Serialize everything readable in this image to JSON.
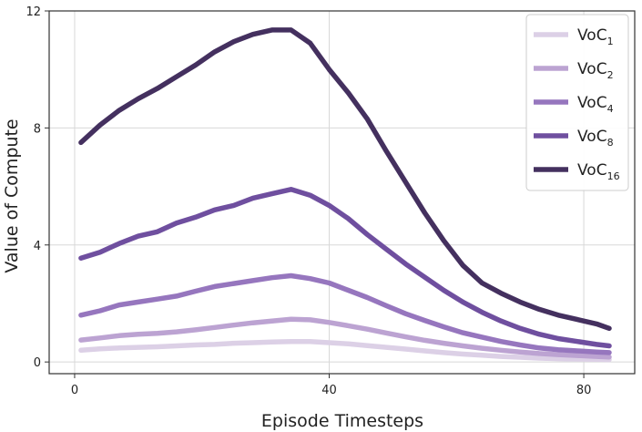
{
  "chart_data": {
    "type": "line",
    "title": "",
    "xlabel": "Episode Timesteps",
    "ylabel": "Value of Compute",
    "xlim": [
      -4,
      88
    ],
    "ylim": [
      -0.4,
      12
    ],
    "xticks": [
      0,
      40,
      80
    ],
    "yticks": [
      0,
      4,
      8,
      12
    ],
    "xtick_labels": [
      "0",
      "40",
      "80"
    ],
    "ytick_labels": [
      "0",
      "4",
      "8",
      "12"
    ],
    "grid": true,
    "legend_position": "top-right",
    "x": [
      1,
      4,
      7,
      10,
      13,
      16,
      19,
      22,
      25,
      28,
      31,
      34,
      37,
      40,
      43,
      46,
      49,
      52,
      55,
      58,
      61,
      64,
      67,
      70,
      73,
      76,
      79,
      82,
      84
    ],
    "series": [
      {
        "name_base": "VoC",
        "name_sub": "1",
        "color": "#dcd0e6",
        "values": [
          0.4,
          0.45,
          0.48,
          0.5,
          0.52,
          0.55,
          0.58,
          0.6,
          0.64,
          0.66,
          0.68,
          0.7,
          0.7,
          0.66,
          0.62,
          0.56,
          0.5,
          0.44,
          0.38,
          0.32,
          0.27,
          0.23,
          0.19,
          0.16,
          0.13,
          0.11,
          0.1,
          0.09,
          0.08
        ]
      },
      {
        "name_base": "VoC",
        "name_sub": "2",
        "color": "#bca3d2",
        "values": [
          0.75,
          0.82,
          0.9,
          0.95,
          0.98,
          1.03,
          1.1,
          1.18,
          1.26,
          1.34,
          1.4,
          1.46,
          1.44,
          1.35,
          1.24,
          1.12,
          0.99,
          0.86,
          0.74,
          0.64,
          0.55,
          0.47,
          0.4,
          0.34,
          0.29,
          0.25,
          0.22,
          0.19,
          0.17
        ]
      },
      {
        "name_base": "VoC",
        "name_sub": "4",
        "color": "#9676be",
        "values": [
          1.6,
          1.75,
          1.95,
          2.05,
          2.15,
          2.25,
          2.42,
          2.58,
          2.68,
          2.78,
          2.88,
          2.95,
          2.85,
          2.7,
          2.45,
          2.2,
          1.92,
          1.65,
          1.42,
          1.2,
          1.0,
          0.85,
          0.7,
          0.58,
          0.48,
          0.42,
          0.38,
          0.34,
          0.32
        ]
      },
      {
        "name_base": "VoC",
        "name_sub": "8",
        "color": "#6f4f9f",
        "values": [
          3.55,
          3.75,
          4.05,
          4.3,
          4.45,
          4.75,
          4.95,
          5.2,
          5.35,
          5.6,
          5.75,
          5.9,
          5.7,
          5.35,
          4.9,
          4.35,
          3.85,
          3.35,
          2.9,
          2.45,
          2.05,
          1.7,
          1.4,
          1.15,
          0.95,
          0.8,
          0.7,
          0.6,
          0.55
        ]
      },
      {
        "name_base": "VoC",
        "name_sub": "16",
        "color": "#44305f",
        "values": [
          7.5,
          8.1,
          8.6,
          9.0,
          9.35,
          9.75,
          10.15,
          10.6,
          10.95,
          11.2,
          11.35,
          11.35,
          10.9,
          10.0,
          9.2,
          8.3,
          7.2,
          6.15,
          5.1,
          4.15,
          3.3,
          2.7,
          2.35,
          2.05,
          1.8,
          1.6,
          1.45,
          1.3,
          1.15
        ]
      }
    ]
  }
}
